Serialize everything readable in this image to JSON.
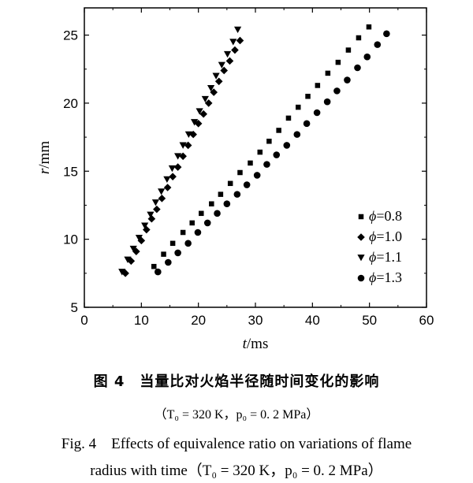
{
  "chart_data": {
    "type": "scatter",
    "xlabel_var": "t",
    "xlabel_unit": "/ms",
    "ylabel_var": "r",
    "ylabel_unit": "/mm",
    "xlim": [
      0,
      60
    ],
    "ylim": [
      5,
      27
    ],
    "xticks": [
      0,
      10,
      20,
      30,
      40,
      50,
      60
    ],
    "yticks": [
      5,
      10,
      15,
      20,
      25
    ],
    "grid": false,
    "legend_position": "bottom-right",
    "series": [
      {
        "name": "ϕ=0.8",
        "legend_label": "=0.8",
        "marker": "square",
        "x": [
          12.2,
          13.9,
          15.5,
          17.3,
          18.9,
          20.5,
          22.3,
          23.9,
          25.6,
          27.3,
          29.1,
          30.8,
          32.4,
          34.1,
          35.8,
          37.5,
          39.2,
          40.9,
          42.7,
          44.5,
          46.3,
          48.1,
          49.9
        ],
        "y": [
          8.0,
          8.9,
          9.7,
          10.5,
          11.2,
          11.9,
          12.6,
          13.3,
          14.1,
          14.9,
          15.6,
          16.4,
          17.2,
          18.0,
          18.9,
          19.7,
          20.5,
          21.3,
          22.2,
          23.0,
          23.9,
          24.8,
          25.6
        ]
      },
      {
        "name": "ϕ=1.0",
        "legend_label": "=1.0",
        "marker": "diamond",
        "x": [
          7.2,
          8.2,
          9.1,
          10.0,
          10.9,
          11.8,
          12.7,
          13.6,
          14.6,
          15.5,
          16.4,
          17.3,
          18.2,
          19.1,
          20.0,
          20.9,
          21.8,
          22.7,
          23.6,
          24.5,
          25.5,
          26.4,
          27.3
        ],
        "y": [
          7.5,
          8.4,
          9.1,
          9.9,
          10.7,
          11.5,
          12.2,
          13.0,
          13.8,
          14.6,
          15.3,
          16.1,
          16.9,
          17.7,
          18.5,
          19.2,
          20.0,
          20.8,
          21.6,
          22.4,
          23.1,
          23.9,
          24.6
        ]
      },
      {
        "name": "ϕ=1.1",
        "legend_label": "=1.1",
        "marker": "triangle-down",
        "x": [
          6.6,
          7.6,
          8.6,
          9.6,
          10.6,
          11.6,
          12.5,
          13.5,
          14.5,
          15.4,
          16.4,
          17.3,
          18.3,
          19.3,
          20.2,
          21.2,
          22.2,
          23.1,
          24.1,
          25.1,
          26.1,
          26.9
        ],
        "y": [
          7.6,
          8.5,
          9.3,
          10.1,
          11.0,
          11.8,
          12.7,
          13.5,
          14.4,
          15.2,
          16.1,
          16.9,
          17.7,
          18.6,
          19.4,
          20.3,
          21.1,
          22.0,
          22.8,
          23.6,
          24.5,
          25.4
        ]
      },
      {
        "name": "ϕ=1.3",
        "legend_label": "=1.3",
        "marker": "circle",
        "x": [
          12.9,
          14.7,
          16.4,
          18.2,
          19.9,
          21.6,
          23.3,
          25.0,
          26.8,
          28.5,
          30.3,
          32.0,
          33.7,
          35.5,
          37.3,
          39.0,
          40.8,
          42.6,
          44.3,
          46.1,
          47.9,
          49.6,
          51.4,
          53.0
        ],
        "y": [
          7.6,
          8.3,
          9.0,
          9.7,
          10.5,
          11.2,
          11.9,
          12.6,
          13.3,
          14.0,
          14.7,
          15.5,
          16.2,
          16.9,
          17.7,
          18.5,
          19.3,
          20.1,
          20.9,
          21.7,
          22.6,
          23.4,
          24.3,
          25.1
        ]
      }
    ]
  },
  "caption": {
    "cn_title": "图 4　当量比对火焰半径随时间变化的影响",
    "cn_conditions": "（T₀ = 320 K，p₀ = 0. 2 MPa）",
    "en_line1": "Fig. 4　Effects of equivalence ratio on variations of flame",
    "en_line2": "radius with time（T₀ = 320 K，p₀ = 0. 2 MPa）"
  }
}
